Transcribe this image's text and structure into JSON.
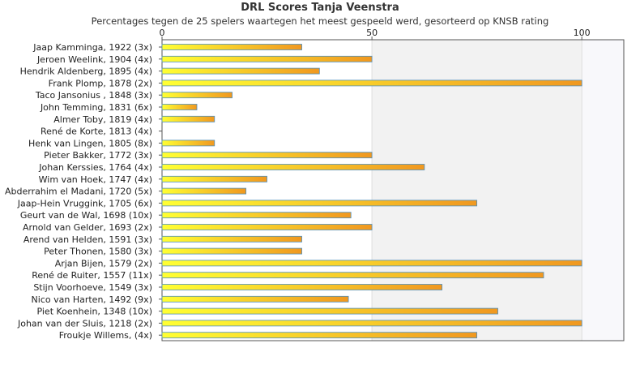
{
  "chart_data": {
    "type": "bar",
    "orientation": "horizontal",
    "title": "DRL Scores Tanja Veenstra",
    "subtitle": "Percentages tegen de 25 spelers waartegen het meest gespeeld werd, gesorteerd op KNSB rating",
    "categories": [
      "Jaap Kamminga, 1922 (3x)",
      "Jeroen Weelink, 1904 (4x)",
      "Hendrik Aldenberg, 1895 (4x)",
      "Frank Plomp, 1878 (2x)",
      "Taco Jansonius , 1848 (3x)",
      "John Temming, 1831 (6x)",
      "Almer Toby, 1819 (4x)",
      "René de Korte, 1813 (4x)",
      "Henk van Lingen, 1805 (8x)",
      "Pieter Bakker, 1772 (3x)",
      "Johan Kerssies, 1764 (4x)",
      "Wim van Hoek, 1747 (4x)",
      "Abderrahim el Madani, 1720 (5x)",
      "Jaap-Hein Vruggink, 1705 (6x)",
      "Geurt van de Wal, 1698 (10x)",
      "Arnold van Gelder, 1693 (2x)",
      "Arend van Helden, 1591 (3x)",
      "Peter Thonen, 1580 (3x)",
      "Arjan Bijen, 1579 (2x)",
      "René de Ruiter, 1557 (11x)",
      "Stijn Voorhoeve, 1549 (3x)",
      "Nico van Harten, 1492 (9x)",
      "Piet Koenhein, 1348 (10x)",
      "Johan van der Sluis, 1218 (2x)",
      "Froukje Willems,  (4x)"
    ],
    "values": [
      33.3,
      50,
      37.5,
      100,
      16.7,
      8.3,
      12.5,
      0,
      12.5,
      50,
      62.5,
      25,
      20,
      75,
      45,
      50,
      33.3,
      33.3,
      100,
      90.9,
      66.7,
      44.4,
      80,
      100,
      75
    ],
    "xlim": [
      0,
      110
    ],
    "xticks": [
      0,
      50,
      100
    ],
    "grid": true,
    "colors": {
      "bar_light": "#ffff33",
      "bar_dark": "#f09820",
      "bar_edge": "#4e8fbf",
      "band": "#f2f2f2"
    }
  }
}
